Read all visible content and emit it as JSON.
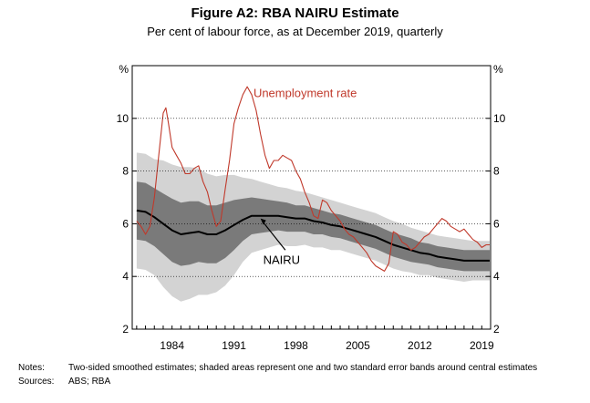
{
  "chart_data": {
    "type": "line",
    "title": "Figure A2: RBA NAIRU Estimate",
    "subtitle": "Per cent of labour force, as at December 2019, quarterly",
    "y_unit_left": "%",
    "y_unit_right": "%",
    "ylim": [
      2,
      12
    ],
    "yticks": [
      2,
      4,
      6,
      8,
      10
    ],
    "xlim": [
      1979.5,
      2020.0
    ],
    "xtick_labels": [
      "1984",
      "1991",
      "1998",
      "2005",
      "2012",
      "2019"
    ],
    "xtick_years": [
      1984,
      1991,
      1998,
      2005,
      2012,
      2019
    ],
    "series": [
      {
        "name": "Unemployment rate",
        "color": "#c0392b",
        "x": [
          1980.0,
          1980.5,
          1981.0,
          1981.5,
          1982.0,
          1982.5,
          1983.0,
          1983.3,
          1983.6,
          1984.0,
          1984.5,
          1985.0,
          1985.5,
          1986.0,
          1986.5,
          1987.0,
          1987.5,
          1988.0,
          1988.5,
          1989.0,
          1989.5,
          1990.0,
          1990.5,
          1991.0,
          1991.5,
          1992.0,
          1992.5,
          1993.0,
          1993.5,
          1994.0,
          1994.5,
          1995.0,
          1995.5,
          1996.0,
          1996.5,
          1997.0,
          1997.5,
          1998.0,
          1998.5,
          1999.0,
          1999.5,
          2000.0,
          2000.5,
          2001.0,
          2001.5,
          2002.0,
          2002.5,
          2003.0,
          2003.5,
          2004.0,
          2004.5,
          2005.0,
          2005.5,
          2006.0,
          2006.5,
          2007.0,
          2007.5,
          2008.0,
          2008.5,
          2009.0,
          2009.5,
          2010.0,
          2010.5,
          2011.0,
          2011.5,
          2012.0,
          2012.5,
          2013.0,
          2013.5,
          2014.0,
          2014.5,
          2015.0,
          2015.5,
          2016.0,
          2016.5,
          2017.0,
          2017.5,
          2018.0,
          2018.5,
          2019.0,
          2019.5,
          2019.9
        ],
        "values": [
          6.1,
          5.9,
          5.6,
          5.9,
          7.0,
          8.6,
          10.2,
          10.4,
          9.8,
          8.9,
          8.6,
          8.3,
          7.9,
          7.9,
          8.1,
          8.2,
          7.6,
          7.2,
          6.5,
          5.9,
          6.1,
          7.3,
          8.4,
          9.8,
          10.4,
          10.9,
          11.2,
          10.9,
          10.3,
          9.4,
          8.6,
          8.1,
          8.4,
          8.4,
          8.6,
          8.5,
          8.4,
          8.0,
          7.7,
          7.2,
          6.8,
          6.3,
          6.2,
          6.9,
          6.8,
          6.5,
          6.3,
          6.1,
          5.8,
          5.6,
          5.5,
          5.3,
          5.1,
          4.9,
          4.6,
          4.4,
          4.3,
          4.2,
          4.5,
          5.7,
          5.6,
          5.3,
          5.2,
          5.0,
          5.1,
          5.3,
          5.5,
          5.6,
          5.8,
          6.0,
          6.2,
          6.1,
          5.9,
          5.8,
          5.7,
          5.8,
          5.6,
          5.4,
          5.3,
          5.1,
          5.2,
          5.2
        ]
      },
      {
        "name": "NAIRU",
        "color": "#000000",
        "x": [
          1980.0,
          1981.0,
          1982.0,
          1983.0,
          1984.0,
          1985.0,
          1986.0,
          1987.0,
          1988.0,
          1989.0,
          1990.0,
          1991.0,
          1992.0,
          1993.0,
          1994.0,
          1995.0,
          1996.0,
          1997.0,
          1998.0,
          1999.0,
          2000.0,
          2001.0,
          2002.0,
          2003.0,
          2004.0,
          2005.0,
          2006.0,
          2007.0,
          2008.0,
          2009.0,
          2010.0,
          2011.0,
          2012.0,
          2013.0,
          2014.0,
          2015.0,
          2016.0,
          2017.0,
          2018.0,
          2019.0,
          2019.9
        ],
        "values": [
          6.5,
          6.45,
          6.25,
          6.0,
          5.75,
          5.6,
          5.65,
          5.7,
          5.6,
          5.6,
          5.75,
          5.95,
          6.15,
          6.3,
          6.3,
          6.3,
          6.3,
          6.25,
          6.2,
          6.2,
          6.1,
          6.05,
          5.95,
          5.9,
          5.8,
          5.7,
          5.6,
          5.5,
          5.35,
          5.2,
          5.1,
          5.0,
          4.9,
          4.85,
          4.75,
          4.7,
          4.65,
          4.6,
          4.6,
          4.6,
          4.6
        ],
        "one_se_band": [
          1.1,
          1.1,
          1.1,
          1.15,
          1.2,
          1.2,
          1.2,
          1.15,
          1.1,
          1.1,
          1.05,
          0.95,
          0.8,
          0.7,
          0.65,
          0.6,
          0.55,
          0.55,
          0.5,
          0.5,
          0.5,
          0.45,
          0.45,
          0.45,
          0.45,
          0.45,
          0.45,
          0.45,
          0.45,
          0.45,
          0.45,
          0.45,
          0.4,
          0.4,
          0.4,
          0.4,
          0.4,
          0.4,
          0.4,
          0.4,
          0.4
        ],
        "two_se_band": [
          2.2,
          2.2,
          2.2,
          2.4,
          2.5,
          2.55,
          2.5,
          2.4,
          2.3,
          2.2,
          2.1,
          1.9,
          1.6,
          1.4,
          1.3,
          1.2,
          1.1,
          1.1,
          1.05,
          1.0,
          1.0,
          0.95,
          0.95,
          0.9,
          0.9,
          0.9,
          0.9,
          0.9,
          0.9,
          0.9,
          0.9,
          0.85,
          0.85,
          0.8,
          0.8,
          0.8,
          0.8,
          0.8,
          0.75,
          0.75,
          0.75
        ]
      }
    ],
    "annotations": [
      "Unemployment rate",
      "NAIRU"
    ],
    "notes_label": "Notes:",
    "notes": "Two-sided smoothed estimates; shaded areas represent one and two standard error bands around central estimates",
    "sources_label": "Sources:",
    "sources": "ABS; RBA"
  }
}
